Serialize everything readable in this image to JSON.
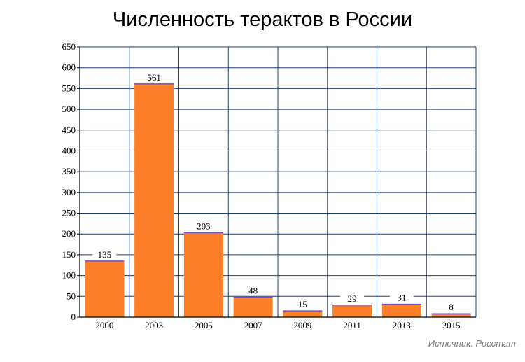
{
  "chart_data": {
    "type": "bar",
    "title": "Численность терактов в России",
    "categories": [
      "2000",
      "2003",
      "2005",
      "2007",
      "2009",
      "2011",
      "2013",
      "2015"
    ],
    "values": [
      135,
      561,
      203,
      48,
      15,
      29,
      31,
      8
    ],
    "data_labels": [
      "135",
      "561",
      "203",
      "48",
      "15",
      "29",
      "31",
      "8"
    ],
    "xlabel": "",
    "ylabel": "",
    "ylim": [
      0,
      650
    ],
    "yticks": [
      0,
      50,
      100,
      150,
      200,
      250,
      300,
      350,
      400,
      450,
      500,
      550,
      600,
      650
    ],
    "ytick_labels": [
      "0",
      "50",
      "100",
      "150",
      "200",
      "250",
      "300",
      "350",
      "400",
      "450",
      "500",
      "550",
      "600",
      "650"
    ],
    "grid": true,
    "legend": "none",
    "colors": {
      "bar_fill": "#fd7f29",
      "bar_edge": "#7052c4",
      "grid": "#1f3f7a",
      "axis": "#000000"
    }
  },
  "source_note": "Источник: Росстат"
}
